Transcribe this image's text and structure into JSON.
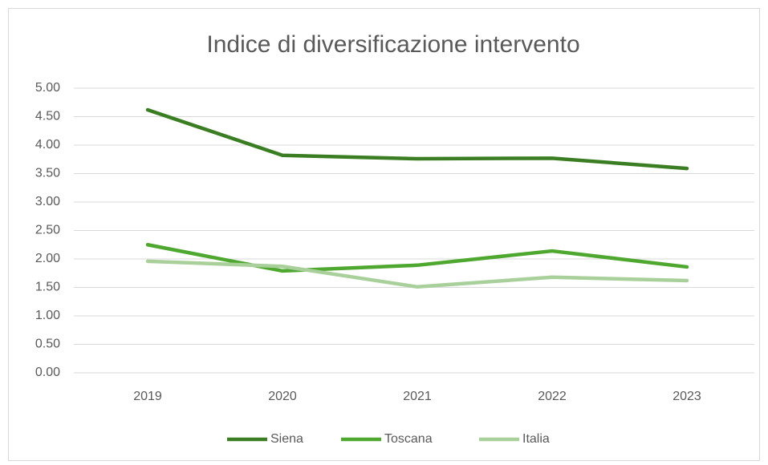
{
  "chart_data": {
    "type": "line",
    "title": "Indice di diversificazione intervento",
    "categories": [
      "2019",
      "2020",
      "2021",
      "2022",
      "2023"
    ],
    "series": [
      {
        "name": "Siena",
        "color": "#3a7d22",
        "values": [
          4.62,
          3.82,
          3.76,
          3.77,
          3.59
        ]
      },
      {
        "name": "Toscana",
        "color": "#4ea72e",
        "values": [
          2.25,
          1.79,
          1.89,
          2.14,
          1.86
        ]
      },
      {
        "name": "Italia",
        "color": "#a9d09a",
        "values": [
          1.96,
          1.87,
          1.51,
          1.68,
          1.62
        ]
      }
    ],
    "ylim": [
      0,
      5
    ],
    "yticks": [
      {
        "value": 0,
        "label": "0.00"
      },
      {
        "value": 0.5,
        "label": "0.50"
      },
      {
        "value": 1,
        "label": "1.00"
      },
      {
        "value": 1.5,
        "label": "1.50"
      },
      {
        "value": 2,
        "label": "2.00"
      },
      {
        "value": 2.5,
        "label": "2.50"
      },
      {
        "value": 3,
        "label": "3.00"
      },
      {
        "value": 3.5,
        "label": "3.50"
      },
      {
        "value": 4,
        "label": "4.00"
      },
      {
        "value": 4.5,
        "label": "4.50"
      },
      {
        "value": 5,
        "label": "5.00"
      }
    ],
    "grid": true,
    "legend": "bottom"
  }
}
